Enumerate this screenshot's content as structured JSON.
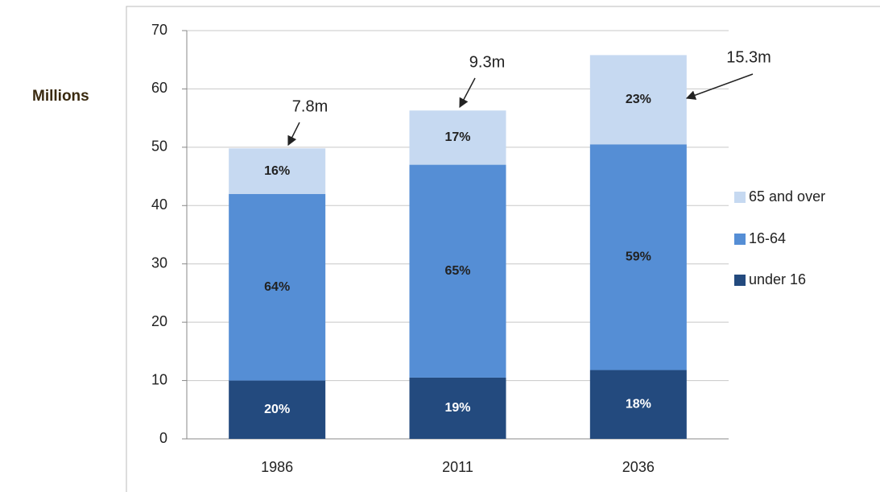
{
  "chart_data": {
    "type": "stacked-bar",
    "y_label": "Millions",
    "categories": [
      "1986",
      "2011",
      "2036"
    ],
    "series": [
      {
        "name": "under 16",
        "color": "#234a7e",
        "values": [
          10,
          10.5,
          11.8
        ],
        "share_labels": [
          "20%",
          "19%",
          "18%"
        ]
      },
      {
        "name": "16-64",
        "color": "#558ed5",
        "values": [
          32,
          36.5,
          38.7
        ],
        "share_labels": [
          "64%",
          "65%",
          "59%"
        ]
      },
      {
        "name": "65 and over",
        "color": "#c6d9f1",
        "values": [
          7.8,
          9.3,
          15.3
        ],
        "share_labels": [
          "16%",
          "17%",
          "23%"
        ],
        "value_labels": [
          "7.8m",
          "9.3m",
          "15.3m"
        ]
      }
    ],
    "ylim": [
      0,
      70
    ],
    "yticks": [
      0,
      10,
      20,
      30,
      40,
      50,
      60,
      70
    ],
    "grid": true,
    "legend": "right"
  }
}
